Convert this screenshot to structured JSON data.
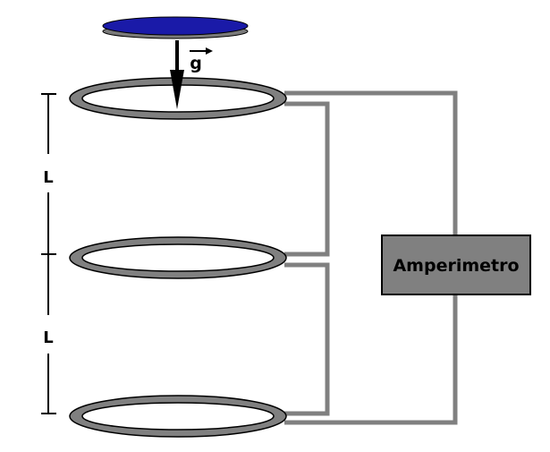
{
  "labels": {
    "gravity": "g",
    "spacing_upper": "L",
    "spacing_lower": "L",
    "ammeter": "Amperimetro"
  },
  "colors": {
    "magnet_top": "#1a1aa8",
    "magnet_side": "#7a7a7a",
    "ring": "#808080",
    "wire": "#808080",
    "ammeter_fill": "#808080",
    "outline": "#000000"
  },
  "icons": {
    "magnet": "disc-magnet-icon",
    "gravity_arrow": "arrow-down-icon",
    "vector_arrow": "vector-arrow-icon"
  }
}
